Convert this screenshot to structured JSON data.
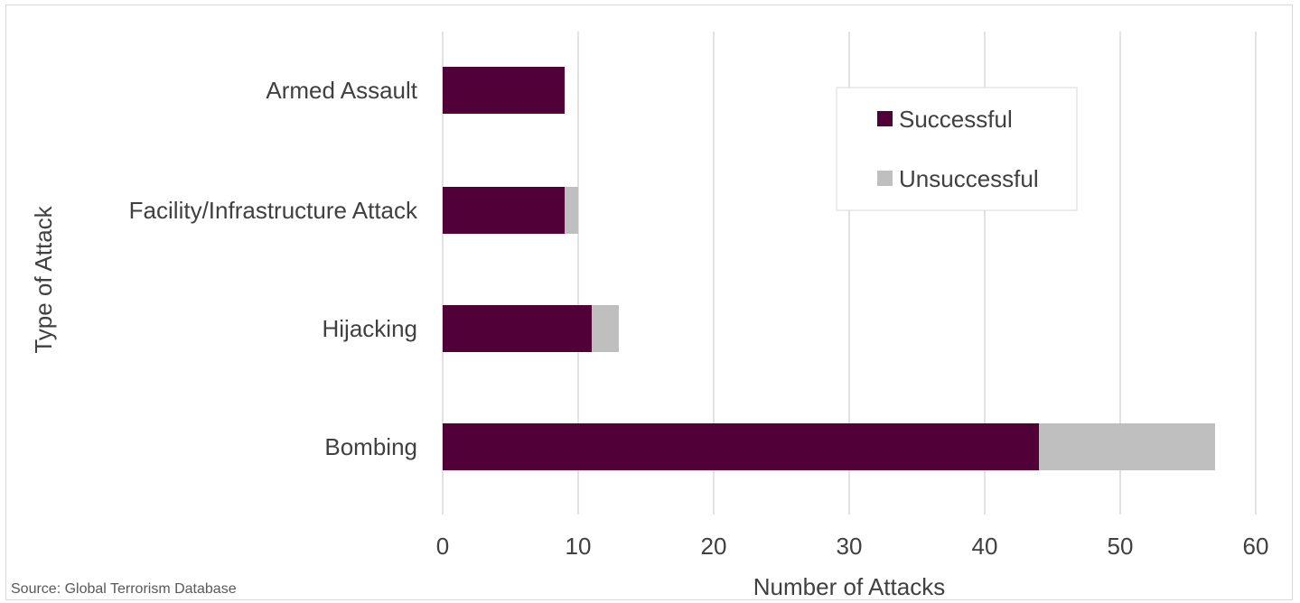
{
  "colors": {
    "successful": "#520038",
    "unsuccessful": "#bfbfbf",
    "grid": "#d9d9d9",
    "text": "#404040"
  },
  "chart_data": {
    "type": "bar",
    "orientation": "horizontal",
    "stacked": true,
    "categories": [
      "Armed Assault",
      "Facility/Infrastructure Attack",
      "Hijacking",
      "Bombing"
    ],
    "series": [
      {
        "name": "Successful",
        "values": [
          9,
          9,
          11,
          44
        ]
      },
      {
        "name": "Unsuccessful",
        "values": [
          0,
          1,
          2,
          13
        ]
      }
    ],
    "xlabel": "Number of Attacks",
    "ylabel": "Type of Attack",
    "xlim": [
      0,
      60
    ],
    "xticks": [
      "0",
      "10",
      "20",
      "30",
      "40",
      "50",
      "60"
    ],
    "grid": true,
    "legend_position": "top-right"
  },
  "source": "Source: Global Terrorism Database"
}
